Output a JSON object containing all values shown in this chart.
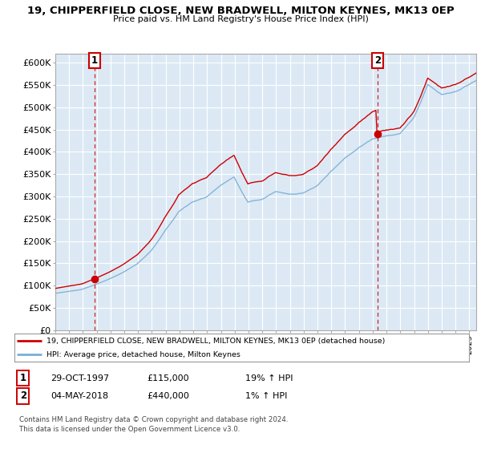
{
  "title_line1": "19, CHIPPERFIELD CLOSE, NEW BRADWELL, MILTON KEYNES, MK13 0EP",
  "title_line2": "Price paid vs. HM Land Registry's House Price Index (HPI)",
  "ylim": [
    0,
    620000
  ],
  "yticks": [
    0,
    50000,
    100000,
    150000,
    200000,
    250000,
    300000,
    350000,
    400000,
    450000,
    500000,
    550000,
    600000
  ],
  "ytick_labels": [
    "£0",
    "£50K",
    "£100K",
    "£150K",
    "£200K",
    "£250K",
    "£300K",
    "£350K",
    "£400K",
    "£450K",
    "£500K",
    "£550K",
    "£600K"
  ],
  "sale1_date_num": 1997.83,
  "sale1_price": 115000,
  "sale1_label": "1",
  "sale1_hpi_pct": "19% ↑ HPI",
  "sale1_date_str": "29-OCT-1997",
  "sale2_date_num": 2018.34,
  "sale2_price": 440000,
  "sale2_label": "2",
  "sale2_hpi_pct": "1% ↑ HPI",
  "sale2_date_str": "04-MAY-2018",
  "red_color": "#cc0000",
  "blue_color": "#7bafd4",
  "legend_line1": "19, CHIPPERFIELD CLOSE, NEW BRADWELL, MILTON KEYNES, MK13 0EP (detached house)",
  "legend_line2": "HPI: Average price, detached house, Milton Keynes",
  "footer_line1": "Contains HM Land Registry data © Crown copyright and database right 2024.",
  "footer_line2": "This data is licensed under the Open Government Licence v3.0.",
  "bg_color": "#ffffff",
  "plot_bg_color": "#dce9f5",
  "grid_color": "#ffffff"
}
